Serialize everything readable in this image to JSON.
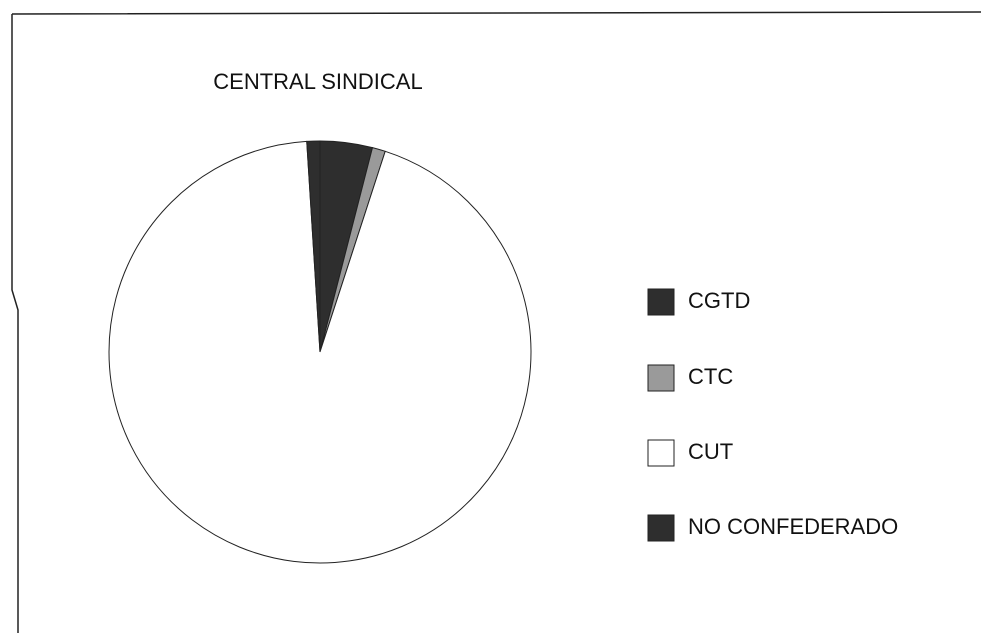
{
  "chart_data": {
    "type": "pie",
    "title": "CENTRAL SINDICAL",
    "categories": [
      "CGTD",
      "CTC",
      "CUT",
      "NO CONFEDERADO"
    ],
    "values": [
      4,
      1,
      94,
      1
    ],
    "colors": [
      "#2e2e2e",
      "#9a9a9a",
      "#ffffff",
      "#2e2e2e"
    ],
    "legend": "right"
  }
}
